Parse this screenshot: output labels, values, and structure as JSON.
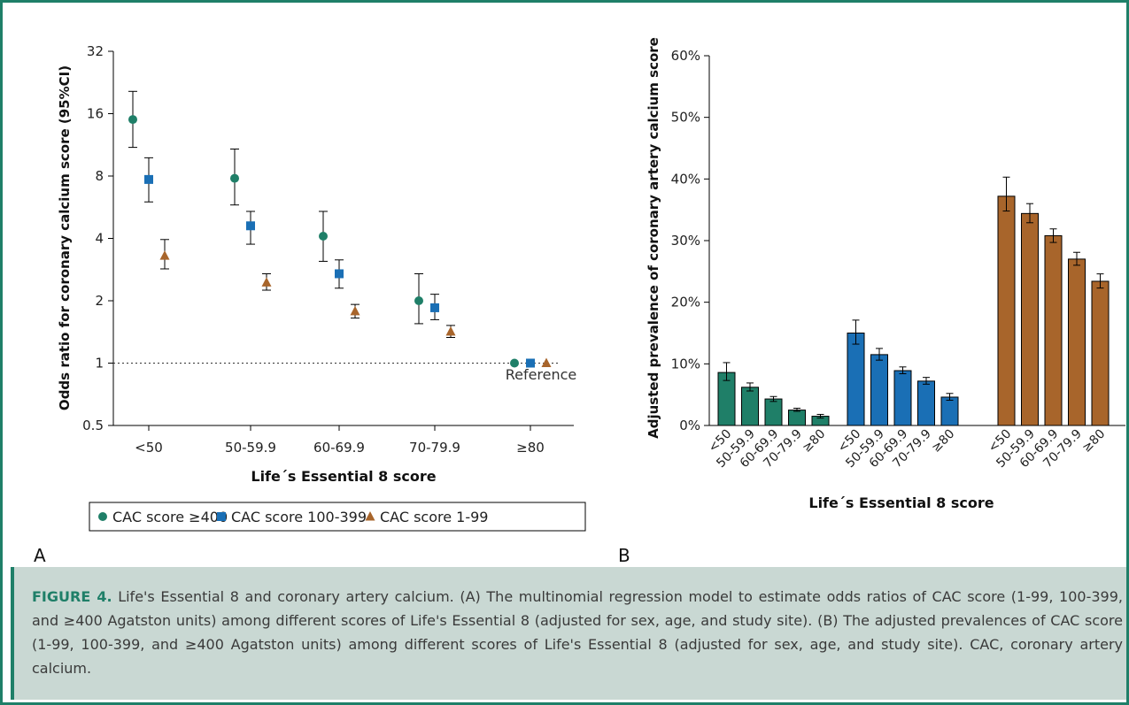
{
  "panel_a": {
    "letter": "A",
    "ylabel": "Odds ratio for coronary calcium score (95%CI)",
    "xlabel": "Life´s Essential 8 score",
    "reference_label": "Reference",
    "y_ticks": [
      "0.5",
      "1",
      "2",
      "4",
      "8",
      "16",
      "32"
    ],
    "legend": [
      {
        "label": "CAC score ≥400",
        "marker": "circle"
      },
      {
        "label": "CAC score 100-399",
        "marker": "square"
      },
      {
        "label": "CAC score 1-99",
        "marker": "triangle"
      }
    ]
  },
  "panel_b": {
    "letter": "B",
    "ylabel": "Adjusted prevalence of coronary artery calcium score",
    "xlabel": "Life´s Essential 8 score",
    "y_ticks": [
      "0%",
      "10%",
      "20%",
      "30%",
      "40%",
      "50%",
      "60%"
    ]
  },
  "colors": {
    "green": "#1f7f68",
    "blue": "#1a6fb5",
    "brown": "#a8652b"
  },
  "caption": {
    "label": "FIGURE 4.",
    "text": " Life's Essential 8 and coronary artery calcium. (A) The multinomial regression model to estimate odds ratios of CAC score (1-99, 100-399, and ≥400 Agatston units) among different scores of Life's Essential 8 (adjusted for sex, age, and study site). (B) The adjusted prevalences of CAC score (1-99, 100-399, and ≥400 Agatston units) among different scores of Life's Essential 8 (adjusted for sex, age, and study site). CAC, coronary artery calcium."
  },
  "chart_data": [
    {
      "type": "scatter",
      "y_scale": "log2",
      "ylim": [
        0.5,
        32
      ],
      "categories": [
        "<50",
        "50-59.9",
        "60-69.9",
        "70-79.9",
        "≥80"
      ],
      "series": [
        {
          "name": "CAC score ≥400",
          "color": "green",
          "marker": "circle",
          "values": [
            15,
            7.8,
            4.1,
            2.0,
            1.0
          ],
          "ci_low": [
            11,
            5.8,
            3.1,
            1.55,
            null
          ],
          "ci_high": [
            20.5,
            10.8,
            5.4,
            2.7,
            null
          ]
        },
        {
          "name": "CAC score 100-399",
          "color": "blue",
          "marker": "square",
          "values": [
            7.7,
            4.6,
            2.7,
            1.85,
            1.0
          ],
          "ci_low": [
            6.0,
            3.75,
            2.3,
            1.62,
            null
          ],
          "ci_high": [
            9.8,
            5.4,
            3.15,
            2.15,
            null
          ]
        },
        {
          "name": "CAC score 1-99",
          "color": "brown",
          "marker": "triangle",
          "values": [
            3.3,
            2.45,
            1.78,
            1.42,
            1.0
          ],
          "ci_low": [
            2.85,
            2.25,
            1.65,
            1.33,
            null
          ],
          "ci_high": [
            3.95,
            2.7,
            1.92,
            1.52,
            null
          ]
        }
      ]
    },
    {
      "type": "bar",
      "ylim": [
        0,
        60
      ],
      "groups": [
        {
          "name": "CAC score ≥400",
          "color": "green",
          "categories": [
            "<50",
            "50-59.9",
            "60-69.9",
            "70-79.9",
            "≥80"
          ],
          "values": [
            8.6,
            6.2,
            4.3,
            2.5,
            1.5
          ],
          "err_low": [
            7.3,
            5.6,
            3.9,
            2.3,
            1.2
          ],
          "err_high": [
            10.2,
            6.9,
            4.7,
            2.8,
            1.8
          ]
        },
        {
          "name": "CAC score 100-399",
          "color": "blue",
          "categories": [
            "<50",
            "50-59.9",
            "60-69.9",
            "70-79.9",
            "≥80"
          ],
          "values": [
            15.0,
            11.5,
            8.9,
            7.2,
            4.6
          ],
          "err_low": [
            13.2,
            10.6,
            8.4,
            6.7,
            4.1
          ],
          "err_high": [
            17.1,
            12.5,
            9.5,
            7.8,
            5.2
          ]
        },
        {
          "name": "CAC score 1-99",
          "color": "brown",
          "categories": [
            "<50",
            "50-59.9",
            "60-69.9",
            "70-79.9",
            "≥80"
          ],
          "values": [
            37.2,
            34.4,
            30.8,
            27.0,
            23.4
          ],
          "err_low": [
            34.8,
            32.9,
            29.7,
            26.0,
            22.3
          ],
          "err_high": [
            40.3,
            36.0,
            31.9,
            28.1,
            24.6
          ]
        }
      ]
    }
  ]
}
